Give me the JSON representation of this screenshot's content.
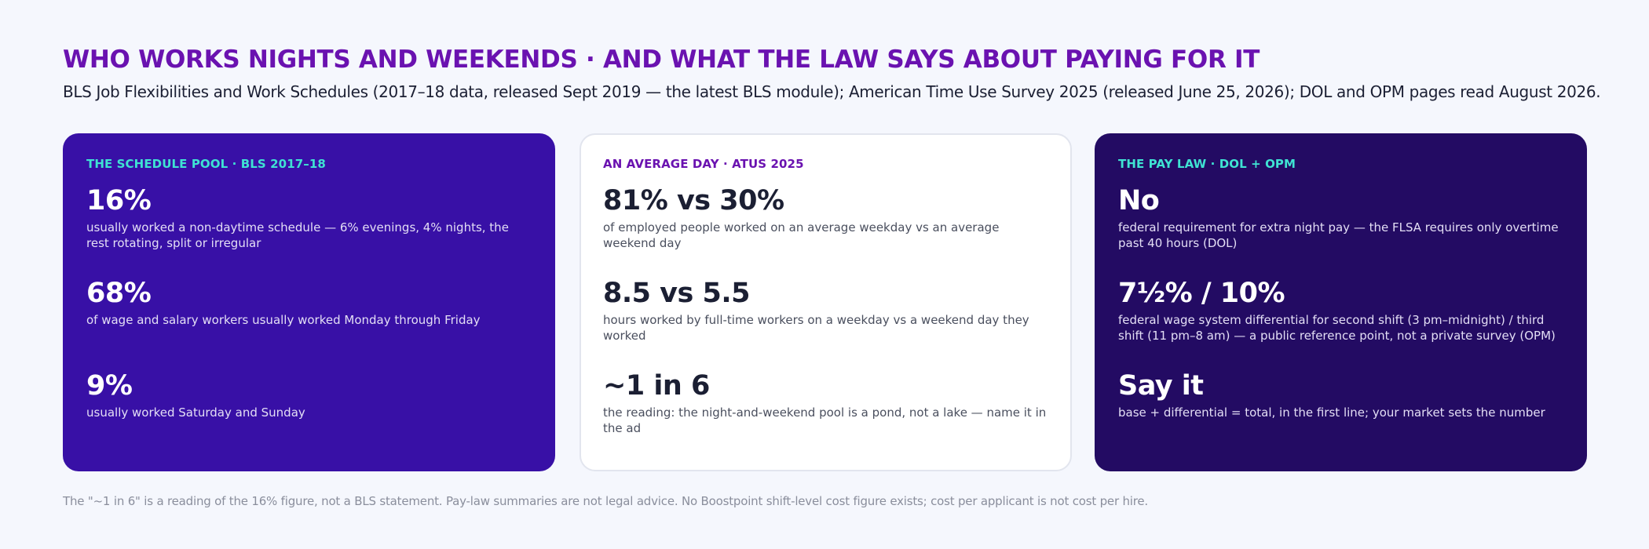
{
  "header": {
    "title": "WHO WORKS NIGHTS AND WEEKENDS · AND WHAT THE LAW SAYS ABOUT PAYING FOR IT",
    "subtitle": "BLS Job Flexibilities and Work Schedules (2017–18 data, released Sept 2019 — the latest BLS module); American Time Use Survey 2025 (released June 25, 2026); DOL and OPM pages read August 2026."
  },
  "cards": [
    {
      "kicker": "THE SCHEDULE POOL · BLS 2017–18",
      "stats": [
        {
          "big": "16%",
          "desc": "usually worked a non-daytime schedule — 6% evenings, 4% nights, the rest rotating, split or irregular"
        },
        {
          "big": "68%",
          "desc": "of wage and salary workers usually worked Monday through Friday"
        },
        {
          "big": "9%",
          "desc": "usually worked Saturday and Sunday"
        }
      ]
    },
    {
      "kicker": "AN AVERAGE DAY · ATUS 2025",
      "stats": [
        {
          "big": "81% vs 30%",
          "desc": "of employed people worked on an average weekday vs an average weekend day"
        },
        {
          "big": "8.5 vs 5.5",
          "desc": "hours worked by full-time workers on a weekday vs a weekend day they worked"
        },
        {
          "big": "~1 in 6",
          "desc": "the reading: the night-and-weekend pool is a pond, not a lake — name it in the ad"
        }
      ]
    },
    {
      "kicker": "THE PAY LAW · DOL + OPM",
      "stats": [
        {
          "big": "No",
          "desc": "federal requirement for extra night pay — the FLSA requires only overtime past 40 hours (DOL)"
        },
        {
          "big": "7½% / 10%",
          "desc": "federal wage system differential for second shift (3 pm–midnight) / third shift (11 pm–8 am) — a public reference point, not a private survey (OPM)"
        },
        {
          "big": "Say it",
          "desc": "base + differential = total, in the first line; your market sets the number"
        }
      ]
    }
  ],
  "footnote": "The \"~1 in 6\" is a reading of the 16% figure, not a BLS statement. Pay-law summaries are not legal advice. No Boostpoint shift-level cost figure exists; cost per applicant is not cost per hire.",
  "colors": {
    "title": "#6a12b0",
    "card1_bg": "#3810a6",
    "card2_bg": "#ffffff",
    "card3_bg": "#230b63",
    "kicker_teal": "#3fe3d3"
  }
}
